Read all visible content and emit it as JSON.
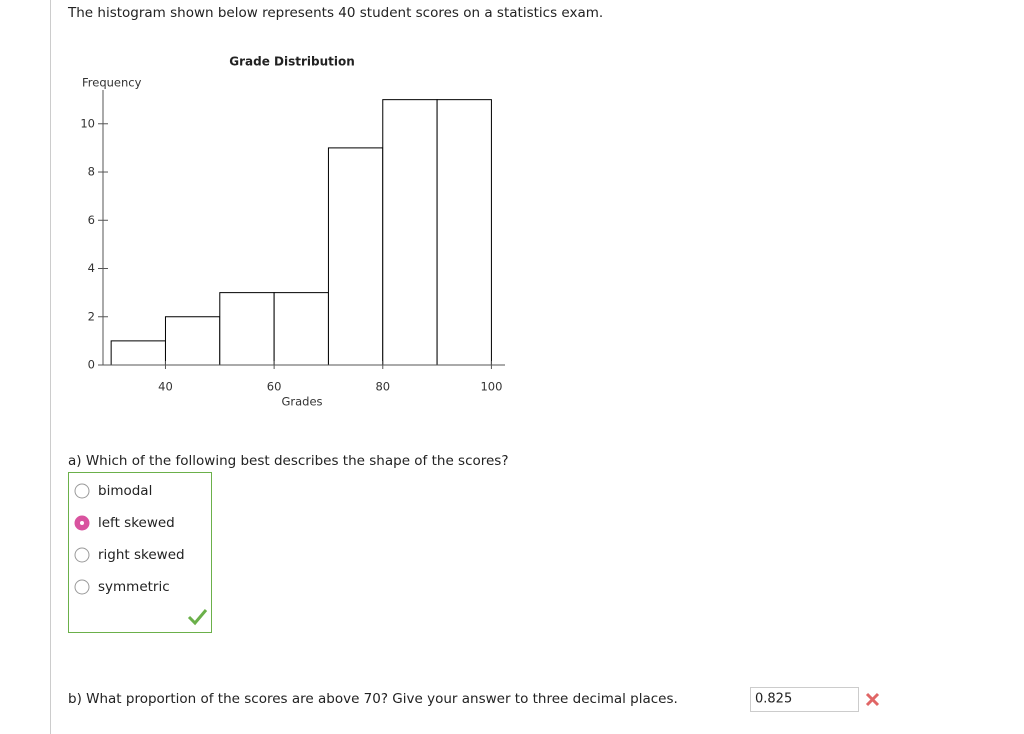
{
  "question": "The histogram shown below represents 40 student scores on a statistics exam.",
  "chart_data": {
    "type": "histogram",
    "title": "Grade Distribution",
    "x_label": "Grades",
    "y_label": "Frequency",
    "bins": [
      30,
      40,
      50,
      60,
      70,
      80,
      90,
      100
    ],
    "values": [
      1,
      2,
      3,
      3,
      9,
      11,
      11
    ],
    "color": "#ffffff",
    "edgecolor": "#000000",
    "xlim": [
      28.5,
      102.5
    ],
    "xticks": [
      40,
      60,
      80,
      100
    ],
    "ylim": [
      0,
      11.4
    ],
    "yticks": [
      0,
      2,
      4,
      6,
      8,
      10
    ],
    "grid": false
  },
  "part_a": {
    "prompt": "a) Which of the following best describes the shape of the scores?",
    "options": [
      {
        "label": "bimodal",
        "selected": false
      },
      {
        "label": "left skewed",
        "selected": true
      },
      {
        "label": "right skewed",
        "selected": false
      },
      {
        "label": "symmetric",
        "selected": false
      }
    ],
    "correct": true
  },
  "part_b": {
    "prompt": "b) What proportion of the scores are above 70? Give your answer to three decimal places.",
    "answer": "0.825",
    "correct": false
  }
}
